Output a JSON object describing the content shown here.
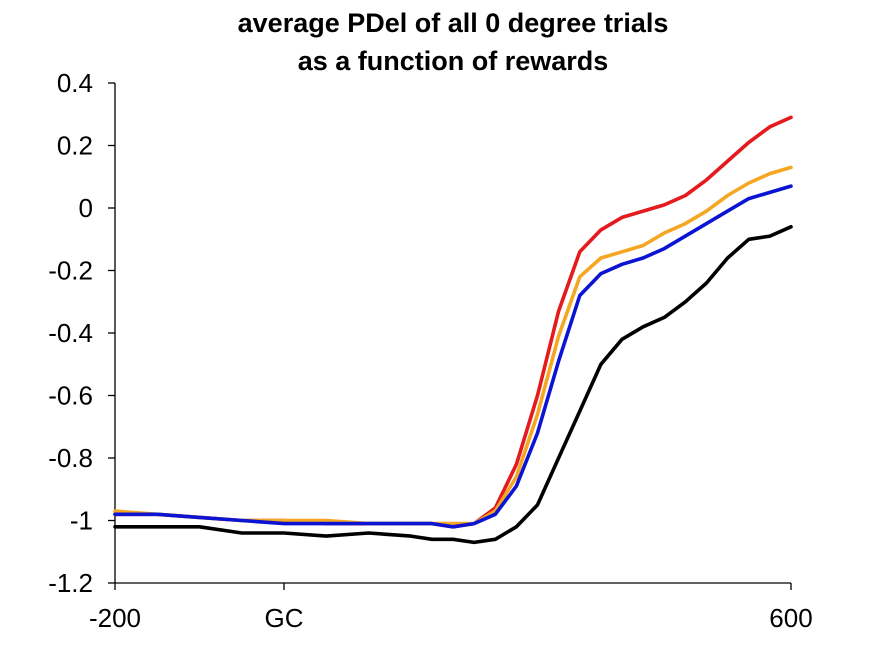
{
  "chart_data": {
    "type": "line",
    "title": [
      "average PDel of all 0 degree trials",
      "as a function of rewards"
    ],
    "xlabel": "",
    "ylabel": "",
    "xlim": [
      -200,
      600
    ],
    "ylim": [
      -1.2,
      0.4
    ],
    "yticks": [
      0.4,
      0.2,
      0,
      -0.2,
      -0.4,
      -0.6,
      -0.8,
      -1,
      -1.2
    ],
    "ytick_labels": [
      "0.4",
      "0.2",
      "0",
      "-0.2",
      "-0.4",
      "-0.6",
      "-0.8",
      "-1",
      "-1.2"
    ],
    "xticks": [
      -200,
      0,
      600
    ],
    "xtick_labels": [
      "-200",
      "GC",
      "600"
    ],
    "grid": false,
    "legend": "none",
    "x": [
      -200,
      -150,
      -100,
      -50,
      0,
      50,
      100,
      150,
      175,
      200,
      225,
      250,
      275,
      300,
      325,
      350,
      375,
      400,
      425,
      450,
      475,
      500,
      525,
      550,
      575,
      600
    ],
    "series": [
      {
        "color": "#e41a1c",
        "values": [
          -0.98,
          -0.98,
          -0.99,
          -1.0,
          -1.0,
          -1.01,
          -1.01,
          -1.01,
          -1.01,
          -1.02,
          -1.01,
          -0.96,
          -0.82,
          -0.6,
          -0.33,
          -0.14,
          -0.07,
          -0.03,
          -0.01,
          0.01,
          0.04,
          0.09,
          0.15,
          0.21,
          0.26,
          0.29
        ]
      },
      {
        "color": "#f5a623",
        "values": [
          -0.97,
          -0.98,
          -0.99,
          -1.0,
          -1.0,
          -1.0,
          -1.01,
          -1.01,
          -1.01,
          -1.01,
          -1.01,
          -0.97,
          -0.86,
          -0.66,
          -0.41,
          -0.22,
          -0.16,
          -0.14,
          -0.12,
          -0.08,
          -0.05,
          -0.01,
          0.04,
          0.08,
          0.11,
          0.13
        ]
      },
      {
        "color": "#0a14d2",
        "values": [
          -0.98,
          -0.98,
          -0.99,
          -1.0,
          -1.01,
          -1.01,
          -1.01,
          -1.01,
          -1.01,
          -1.02,
          -1.01,
          -0.98,
          -0.89,
          -0.72,
          -0.49,
          -0.28,
          -0.21,
          -0.18,
          -0.16,
          -0.13,
          -0.09,
          -0.05,
          -0.01,
          0.03,
          0.05,
          0.07
        ]
      },
      {
        "color": "#000000",
        "values": [
          -1.02,
          -1.02,
          -1.02,
          -1.04,
          -1.04,
          -1.05,
          -1.04,
          -1.05,
          -1.06,
          -1.06,
          -1.07,
          -1.06,
          -1.02,
          -0.95,
          -0.8,
          -0.65,
          -0.5,
          -0.42,
          -0.38,
          -0.35,
          -0.3,
          -0.24,
          -0.16,
          -0.1,
          -0.09,
          -0.06
        ]
      }
    ]
  }
}
